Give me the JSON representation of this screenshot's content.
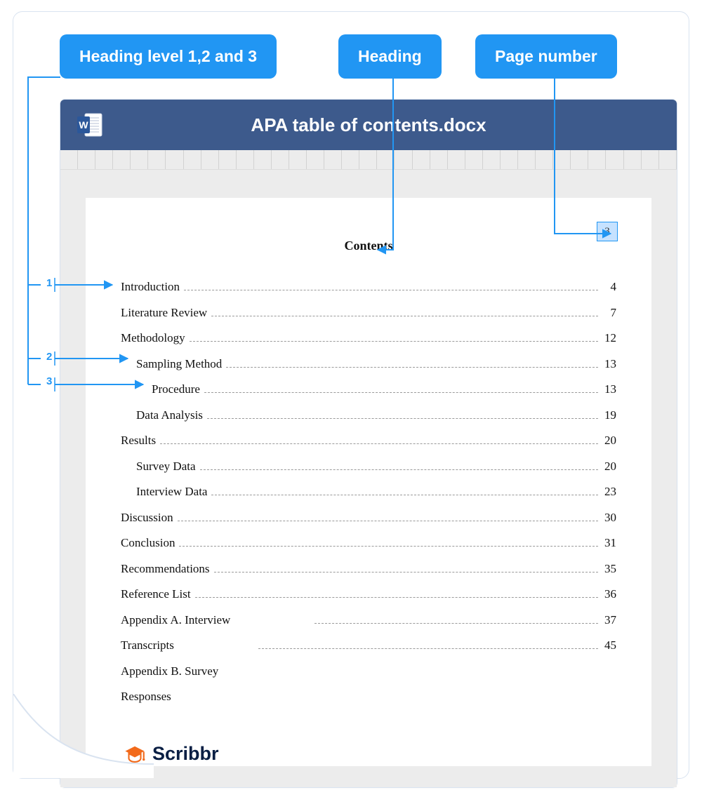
{
  "callouts": {
    "levels": "Heading level 1,2 and 3",
    "heading": "Heading",
    "pagenum": "Page number"
  },
  "colors": {
    "callout_bg": "#2196f3",
    "callout_text": "#ffffff",
    "titlebar_bg": "#3d5a8c",
    "ruler_bg": "#ececec",
    "page_bg": "#ffffff",
    "connector": "#2196f3",
    "pagebox_border": "#2196f3",
    "pagebox_fill": "#c6e2ff",
    "dots": "#9a9a9a",
    "logo_text": "#0a1f44",
    "logo_icon": "#f26a1b",
    "border": "#d9e3f0"
  },
  "level_markers": {
    "one": "1",
    "two": "2",
    "three": "3"
  },
  "doc": {
    "filename": "APA table of contents.docx",
    "page_number": "3",
    "contents_title": "Contents",
    "toc": [
      {
        "label": "Introduction",
        "page": "4",
        "level": 1
      },
      {
        "label": "Literature Review",
        "page": "7",
        "level": 1
      },
      {
        "label": "Methodology",
        "page": "12",
        "level": 1
      },
      {
        "label": "Sampling Method",
        "page": "13",
        "level": 2
      },
      {
        "label": "Procedure",
        "page": "13",
        "level": 3
      },
      {
        "label": "Data Analysis",
        "page": "19",
        "level": 2
      },
      {
        "label": "Results",
        "page": "20",
        "level": 1
      },
      {
        "label": "Survey Data",
        "page": "20",
        "level": 2
      },
      {
        "label": "Interview Data",
        "page": "23",
        "level": 2
      },
      {
        "label": "Discussion",
        "page": "30",
        "level": 1
      },
      {
        "label": "Conclusion",
        "page": "31",
        "level": 1
      },
      {
        "label": "Recommendations",
        "page": "35",
        "level": 1
      },
      {
        "label": "Reference List",
        "page": "36",
        "level": 1
      },
      {
        "label": "Appendix A. Interview",
        "page": "37",
        "level": 1,
        "partial": true
      },
      {
        "label": "Transcripts",
        "page": "45",
        "level": 1,
        "partial": true
      },
      {
        "label": "Appendix B. Survey",
        "page": "",
        "level": 1,
        "nopagenum": true
      },
      {
        "label": "Responses",
        "page": "",
        "level": 1,
        "nopagenum": true
      }
    ]
  },
  "logo": {
    "text": "Scribbr"
  }
}
